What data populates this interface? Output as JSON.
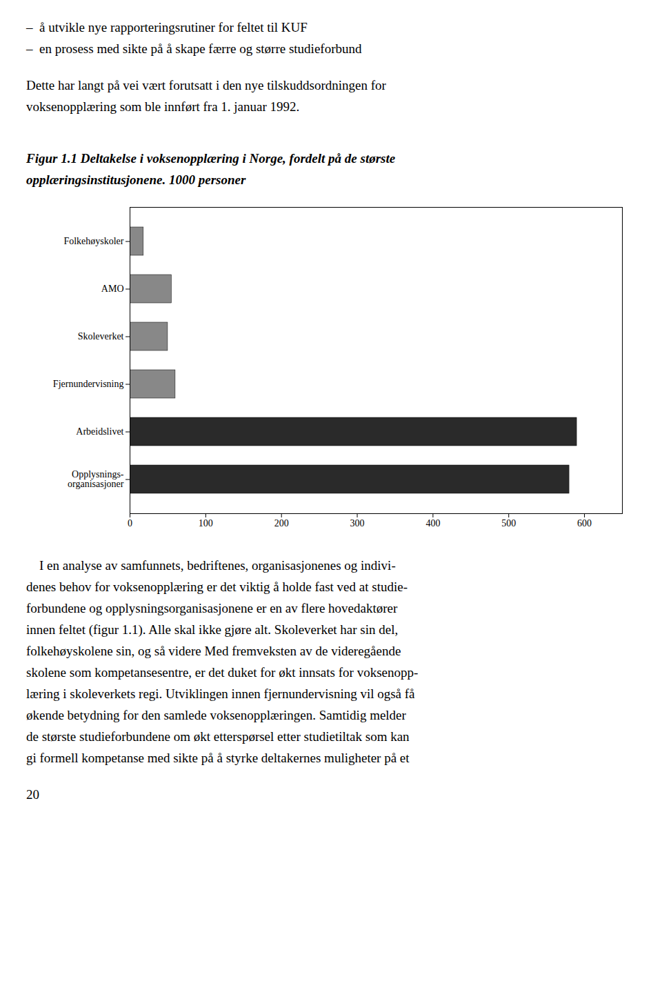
{
  "chart_data": {
    "type": "bar",
    "orientation": "horizontal",
    "title": "Figur 1.1 Deltakelse i voksenopplæring i Norge, fordelt på de største\nopplæringsinstitusjonene. 1000 personer",
    "annotations": [
      "–  å utvikle nye rapporteringsrutiner for feltet til KUF",
      "–  en prosess med sikte på å skape færre og større studieforbund",
      "Dette har langt på vei vært forutsatt i den nye tilskuddsordningen for",
      "voksenopplæring som ble innført fra 1. januar 1992.",
      "    I en analyse av samfunnets, bedriftenes, organisasjonenes og indivi-",
      "denes behov for voksenopplæring er det viktig å holde fast ved at studie-",
      "forbundene og opplysningsorganisasjonene er en av flere hovedaktører",
      "innen feltet (figur 1.1). Alle skal ikke gjøre alt. Skoleverket har sin del,",
      "folkehøyskolene sin, og så videre Med fremveksten av de videregående",
      "skolene som kompetansesentre, er det duket for økt innsats for voksenopp-",
      "læring i skoleverkets regi. Utviklingen innen fjernundervisning vil også få",
      "økende betydning for den samlede voksenopplæringen. Samtidig melder",
      "de største studieforbundene om økt etterspørsel etter studietiltak som kan",
      "gi formell kompetanse med sikte på å styrke deltakernes muligheter på et",
      "20"
    ],
    "categories": [
      "Folkehøyskoler",
      "AMO",
      "Skoleverket",
      "Fjernundervisning",
      "Arbeidslivet",
      "Opplysnings-\norganisasjoner"
    ],
    "values": [
      18,
      55,
      50,
      60,
      590,
      580
    ],
    "colors": [
      "#888888",
      "#888888",
      "#888888",
      "#888888",
      "#2a2a2a",
      "#2a2a2a"
    ],
    "xlim": [
      0,
      650
    ],
    "xticks": [
      0,
      100,
      200,
      300,
      400,
      500,
      600
    ],
    "grid": false
  }
}
